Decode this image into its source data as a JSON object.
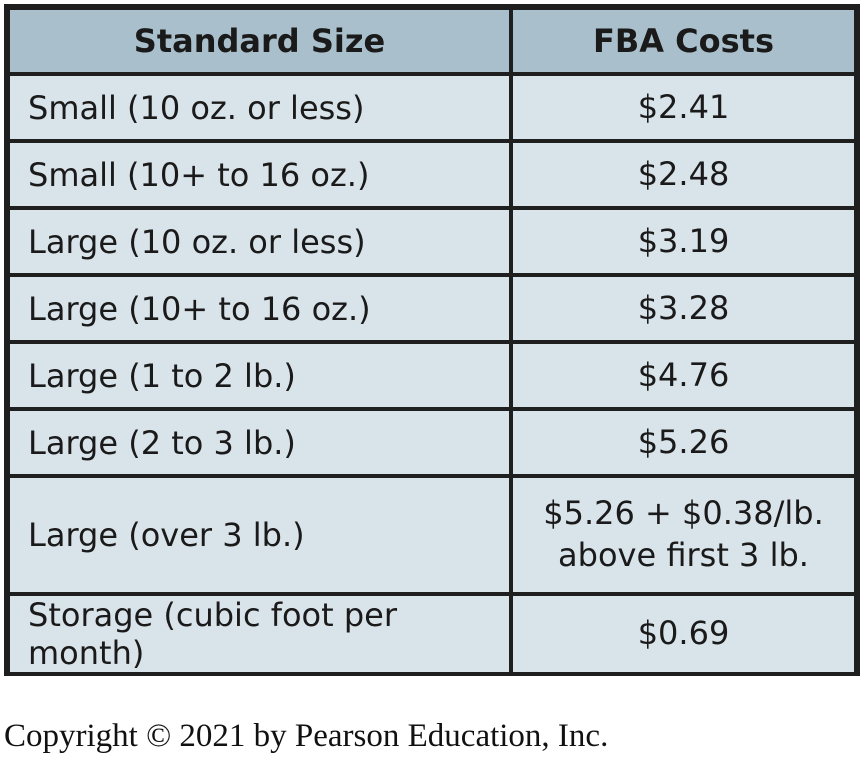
{
  "table": {
    "headers": [
      "Standard Size",
      "FBA Costs"
    ],
    "rows": [
      {
        "size": "Small (10 oz. or less)",
        "cost": "$2.41"
      },
      {
        "size": "Small (10+ to 16 oz.)",
        "cost": "$2.48"
      },
      {
        "size": "Large (10 oz. or less)",
        "cost": "$3.19"
      },
      {
        "size": "Large (10+ to 16 oz.)",
        "cost": "$3.28"
      },
      {
        "size": "Large (1 to 2 lb.)",
        "cost": "$4.76"
      },
      {
        "size": "Large (2 to 3 lb.)",
        "cost": "$5.26"
      },
      {
        "size": "Large (over 3 lb.)",
        "cost": "$5.26 + $0.38/lb.",
        "cost_line2": "above first 3 lb."
      },
      {
        "size": "Storage (cubic foot per month)",
        "cost": "$0.69"
      }
    ]
  },
  "copyright": "Copyright © 2021 by Pearson Education, Inc.",
  "colors": {
    "header_bg": "#a9bfcb",
    "cell_bg": "#d9e3ea",
    "border": "#1f1f1f"
  }
}
